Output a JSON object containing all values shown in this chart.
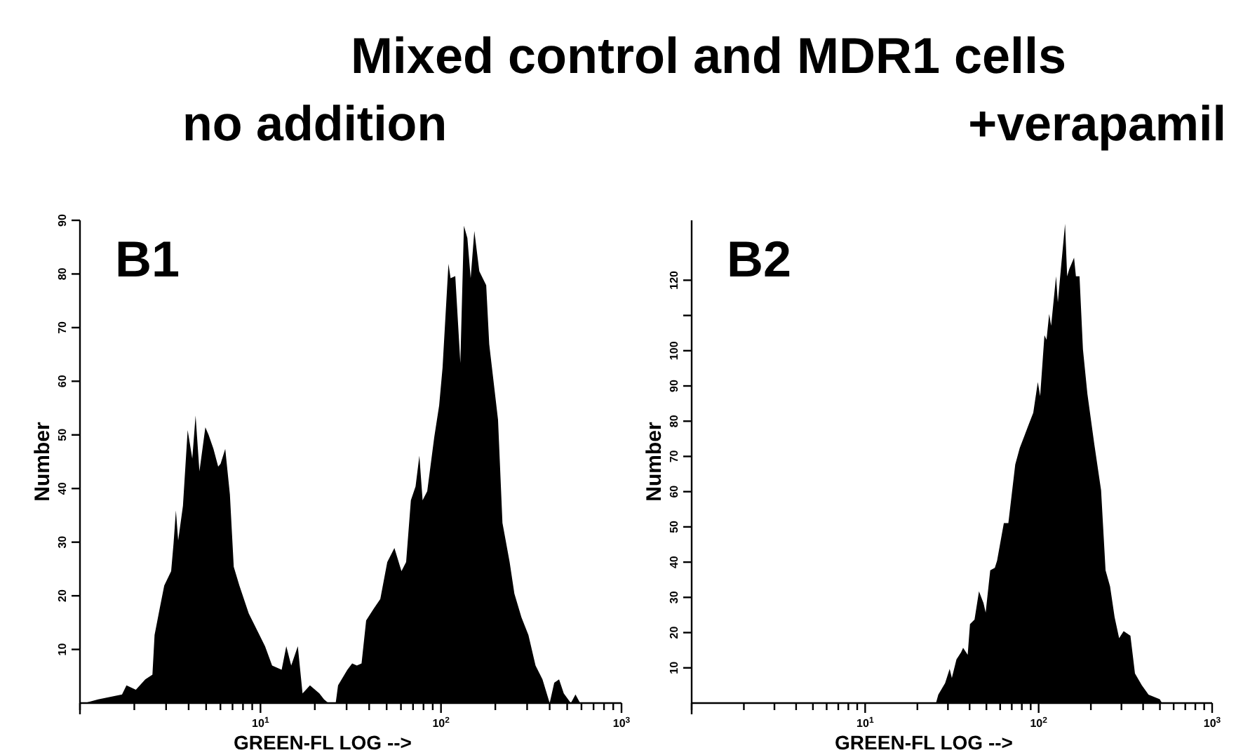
{
  "chart_data": [
    {
      "type": "area",
      "title": "Mixed control and MDR1 cells",
      "subtitle": "no addition",
      "xlabel": "GREEN-FL LOG -->",
      "ylabel": "Number",
      "annotations": [
        "B1"
      ],
      "log": "x",
      "grid": false,
      "xlim": [
        1,
        1000
      ],
      "ylim": [
        0,
        90
      ],
      "xticks": [
        {
          "value": 1,
          "label": null
        },
        {
          "value": 2,
          "label": null
        },
        {
          "value": 3,
          "label": null
        },
        {
          "value": 4,
          "label": null
        },
        {
          "value": 5,
          "label": null
        },
        {
          "value": 6,
          "label": null
        },
        {
          "value": 7,
          "label": null
        },
        {
          "value": 8,
          "label": null
        },
        {
          "value": 9,
          "label": null
        },
        {
          "value": 10,
          "label": "10$^{1}$"
        },
        {
          "value": 20,
          "label": null
        },
        {
          "value": 30,
          "label": null
        },
        {
          "value": 40,
          "label": null
        },
        {
          "value": 50,
          "label": null
        },
        {
          "value": 60,
          "label": null
        },
        {
          "value": 70,
          "label": null
        },
        {
          "value": 80,
          "label": null
        },
        {
          "value": 90,
          "label": null
        },
        {
          "value": 100,
          "label": "10$^{2}$"
        },
        {
          "value": 200,
          "label": null
        },
        {
          "value": 300,
          "label": null
        },
        {
          "value": 400,
          "label": null
        },
        {
          "value": 500,
          "label": null
        },
        {
          "value": 600,
          "label": null
        },
        {
          "value": 700,
          "label": null
        },
        {
          "value": 800,
          "label": null
        },
        {
          "value": 900,
          "label": null
        },
        {
          "value": 1000,
          "label": "10$^{3}$"
        }
      ],
      "yticks": [
        10,
        20,
        30,
        40,
        50,
        60,
        70,
        80,
        90
      ],
      "series": [
        {
          "color": "#000000",
          "x": [
            1.0,
            1.06,
            1.26,
            1.71,
            1.81,
            2.04,
            2.3,
            2.52,
            2.59,
            2.76,
            2.93,
            3.2,
            3.3,
            3.4,
            3.5,
            3.72,
            3.95,
            4.19,
            4.37,
            4.59,
            4.95,
            5.16,
            5.49,
            5.83,
            6.01,
            6.38,
            6.77,
            7.11,
            7.64,
            8.61,
            9.7,
            10.6,
            11.6,
            13.1,
            13.9,
            14.8,
            16.1,
            17.1,
            18.8,
            21.2,
            22.5,
            23.8,
            26.1,
            26.9,
            30.3,
            32.2,
            34.2,
            36.3,
            38.5,
            42.2,
            46.1,
            50.4,
            55.2,
            60.4,
            64.1,
            68.1,
            72.3,
            75.9,
            79.1,
            83.9,
            91.8,
            97.7,
            102,
            110,
            113,
            120,
            128,
            134,
            140,
            146,
            153,
            163,
            178,
            185,
            207,
            219,
            240,
            255,
            279,
            305,
            334,
            365,
            400,
            424,
            451,
            479,
            524,
            556,
            590
          ],
          "values": [
            0,
            0,
            0.7,
            1.6,
            3.3,
            2.5,
            4.4,
            5.3,
            12.7,
            17.5,
            21.9,
            24.6,
            29.8,
            35.9,
            30.3,
            36.8,
            50.9,
            45.6,
            53.6,
            43.2,
            51.4,
            50.0,
            47.4,
            44.1,
            44.6,
            47.4,
            38.9,
            25.4,
            21.9,
            16.7,
            13.2,
            10.6,
            7.0,
            6.2,
            10.6,
            7.0,
            10.6,
            1.8,
            3.3,
            1.8,
            0.7,
            0,
            0,
            3.3,
            6.2,
            7.4,
            7.0,
            7.4,
            15.4,
            17.5,
            19.4,
            26.3,
            28.9,
            24.6,
            26.3,
            37.8,
            40.4,
            46.1,
            37.8,
            39.5,
            49.6,
            55.5,
            62.5,
            81.9,
            79.2,
            79.6,
            63.4,
            89,
            86.7,
            79.2,
            88,
            80.5,
            77.9,
            66.9,
            52.8,
            33.6,
            26.3,
            20.4,
            16.0,
            12.7,
            7.0,
            4.4,
            0,
            3.8,
            4.4,
            1.8,
            0,
            1.6,
            0
          ]
        }
      ]
    },
    {
      "type": "area",
      "subtitle": "+verapamil",
      "xlabel": "GREEN-FL LOG -->",
      "ylabel": "Number",
      "annotations": [
        "B2"
      ],
      "log": "x",
      "grid": false,
      "xlim": [
        1,
        1000
      ],
      "ylim": [
        0,
        137
      ],
      "xticks": [
        {
          "value": 1,
          "label": null
        },
        {
          "value": 2,
          "label": null
        },
        {
          "value": 3,
          "label": null
        },
        {
          "value": 4,
          "label": null
        },
        {
          "value": 5,
          "label": null
        },
        {
          "value": 6,
          "label": null
        },
        {
          "value": 7,
          "label": null
        },
        {
          "value": 8,
          "label": null
        },
        {
          "value": 9,
          "label": null
        },
        {
          "value": 10,
          "label": "10$^{1}$"
        },
        {
          "value": 20,
          "label": null
        },
        {
          "value": 30,
          "label": null
        },
        {
          "value": 40,
          "label": null
        },
        {
          "value": 50,
          "label": null
        },
        {
          "value": 60,
          "label": null
        },
        {
          "value": 70,
          "label": null
        },
        {
          "value": 80,
          "label": null
        },
        {
          "value": 90,
          "label": null
        },
        {
          "value": 100,
          "label": "10$^{2}$"
        },
        {
          "value": 200,
          "label": null
        },
        {
          "value": 300,
          "label": null
        },
        {
          "value": 400,
          "label": null
        },
        {
          "value": 500,
          "label": null
        },
        {
          "value": 600,
          "label": null
        },
        {
          "value": 700,
          "label": null
        },
        {
          "value": 800,
          "label": null
        },
        {
          "value": 900,
          "label": null
        },
        {
          "value": 1000,
          "label": "10$^{3}$"
        }
      ],
      "yticks": [
        10,
        20,
        30,
        40,
        50,
        60,
        70,
        80,
        90,
        100,
        {
          "value": 110,
          "label": null
        },
        120
      ],
      "series": [
        {
          "color": "#000000",
          "x": [
            1.0,
            25.0,
            25.6,
            26.4,
            28.9,
            30.7,
            31.6,
            33.6,
            35.7,
            36.7,
            39.0,
            40.2,
            42.7,
            45.3,
            48.1,
            49.5,
            52.6,
            55.9,
            57.6,
            63.0,
            66.9,
            73.3,
            77.8,
            82.6,
            87.7,
            93.1,
            98.9,
            102,
            108,
            111,
            115,
            118,
            126,
            129,
            135,
            142,
            146,
            150,
            160,
            164,
            172,
            180,
            191,
            209,
            229,
            243,
            258,
            274,
            291,
            309,
            338,
            359,
            393,
            430,
            499,
            514
          ],
          "values": [
            0,
            0,
            0,
            2.4,
            5.7,
            9.7,
            7.1,
            12.4,
            14.4,
            15.7,
            13.7,
            22.4,
            23.7,
            31.7,
            28.4,
            25.7,
            37.7,
            38.4,
            40.4,
            51.1,
            51.1,
            67.7,
            72.4,
            75.7,
            79.1,
            82.4,
            91.1,
            87.1,
            104.4,
            103.1,
            110.4,
            107.1,
            121.1,
            113.7,
            124.4,
            136,
            121.1,
            123.1,
            126.4,
            121.1,
            121.1,
            100.4,
            87.7,
            73.7,
            60.4,
            37.7,
            33.1,
            24.4,
            18.4,
            20.4,
            19.1,
            8.4,
            5.1,
            2.4,
            1.1,
            0
          ]
        }
      ]
    }
  ]
}
